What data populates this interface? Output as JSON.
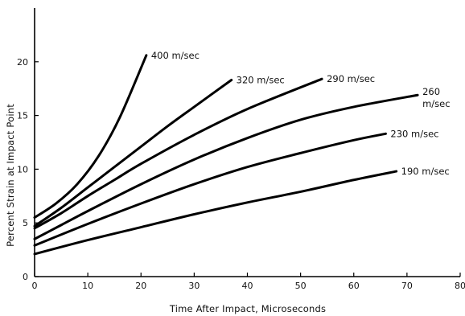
{
  "chart_data": {
    "type": "line",
    "title": "",
    "xlabel": "Time After Impact, Microseconds",
    "ylabel": "Percent Strain at Impact Point",
    "xlim": [
      0,
      80
    ],
    "ylim": [
      0,
      25
    ],
    "x_ticks": [
      "0",
      "10",
      "20",
      "30",
      "40",
      "50",
      "60",
      "70",
      "80"
    ],
    "y_ticks": [
      "0",
      "5",
      "10",
      "15",
      "20"
    ],
    "grid": false,
    "series": [
      {
        "name": "400 m/sec",
        "label_lines": [
          "400 m/sec"
        ],
        "x": [
          0,
          4,
          8,
          12,
          16,
          21
        ],
        "y": [
          5.5,
          6.8,
          8.6,
          11.2,
          14.8,
          20.6
        ]
      },
      {
        "name": "320 m/sec",
        "label_lines": [
          "320 m/sec"
        ],
        "x": [
          0,
          5,
          10,
          15,
          20,
          25,
          30,
          37
        ],
        "y": [
          4.7,
          6.4,
          8.3,
          10.2,
          12.1,
          14.0,
          15.8,
          18.3
        ]
      },
      {
        "name": "290 m/sec",
        "label_lines": [
          "290 m/sec"
        ],
        "x": [
          0,
          5,
          10,
          15,
          20,
          30,
          40,
          54
        ],
        "y": [
          4.5,
          5.9,
          7.5,
          9.0,
          10.5,
          13.2,
          15.6,
          18.4
        ]
      },
      {
        "name": "260 m/sec",
        "label_lines": [
          "260",
          "m/sec"
        ],
        "x": [
          0,
          5,
          10,
          20,
          30,
          40,
          50,
          60,
          72
        ],
        "y": [
          3.5,
          4.8,
          6.1,
          8.6,
          10.9,
          12.9,
          14.6,
          15.8,
          16.9
        ]
      },
      {
        "name": "230 m/sec",
        "label_lines": [
          "230 m/sec"
        ],
        "x": [
          0,
          10,
          20,
          30,
          40,
          50,
          60,
          66
        ],
        "y": [
          2.9,
          4.9,
          6.8,
          8.6,
          10.2,
          11.5,
          12.7,
          13.3
        ]
      },
      {
        "name": "190 m/sec",
        "label_lines": [
          "190 m/sec"
        ],
        "x": [
          0,
          10,
          20,
          30,
          40,
          50,
          60,
          68
        ],
        "y": [
          2.1,
          3.4,
          4.6,
          5.8,
          6.9,
          7.9,
          9.0,
          9.8
        ]
      }
    ]
  }
}
